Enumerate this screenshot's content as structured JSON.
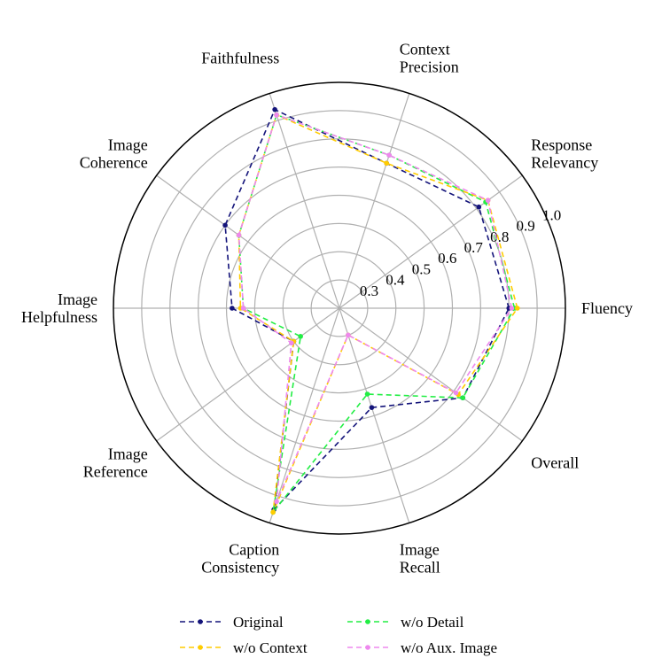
{
  "chart_data": {
    "type": "radar",
    "axes": [
      {
        "lines": [
          "Fluency"
        ]
      },
      {
        "lines": [
          "Response",
          "Relevancy"
        ]
      },
      {
        "lines": [
          "Context",
          "Precision"
        ]
      },
      {
        "lines": [
          "Faithfulness"
        ]
      },
      {
        "lines": [
          "Image",
          "Coherence"
        ]
      },
      {
        "lines": [
          "Image",
          "Helpfulness"
        ]
      },
      {
        "lines": [
          "Image",
          "Reference"
        ]
      },
      {
        "lines": [
          "Caption",
          "Consistency"
        ]
      },
      {
        "lines": [
          "Image",
          "Recall"
        ]
      },
      {
        "lines": [
          "Overall"
        ]
      }
    ],
    "rlim": [
      0.2,
      1.0
    ],
    "rticks": [
      "0.3",
      "0.4",
      "0.5",
      "0.6",
      "0.7",
      "0.8",
      "0.9",
      "1.0"
    ],
    "grid": true,
    "series": [
      {
        "name": "Original",
        "color": "#14147a",
        "values": [
          0.8,
          0.81,
          0.74,
          0.94,
          0.7,
          0.58,
          0.4,
          0.95,
          0.57,
          0.74
        ]
      },
      {
        "name": "w/o Detail",
        "color": "#22ee44",
        "values": [
          0.82,
          0.84,
          0.77,
          0.92,
          0.64,
          0.54,
          0.37,
          0.96,
          0.52,
          0.74
        ]
      },
      {
        "name": "w/o Context",
        "color": "#ffcc00",
        "values": [
          0.83,
          0.85,
          0.74,
          0.92,
          0.64,
          0.55,
          0.4,
          0.96,
          0.3,
          0.72
        ]
      },
      {
        "name": "w/o Aux. Image",
        "color": "#ee88ee",
        "values": [
          0.81,
          0.85,
          0.77,
          0.92,
          0.64,
          0.54,
          0.41,
          0.92,
          0.3,
          0.71
        ]
      }
    ],
    "legend_position": "bottom"
  }
}
